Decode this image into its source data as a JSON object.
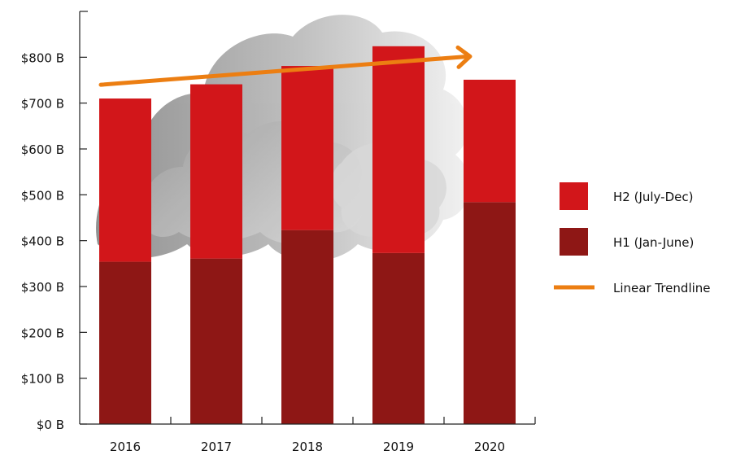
{
  "chart_data": {
    "type": "bar",
    "stacked": true,
    "categories": [
      "2016",
      "2017",
      "2018",
      "2019",
      "2020"
    ],
    "series": [
      {
        "name": "H1 (Jan-June)",
        "color": "#8e1715",
        "values": [
          354,
          361,
          423,
          373,
          484
        ]
      },
      {
        "name": "H2 (July-Dec)",
        "color": "#d2161a",
        "values": [
          356,
          380,
          358,
          451,
          267
        ]
      }
    ],
    "trendline": {
      "name": "Linear Trendline",
      "color": "#ec7e12",
      "start": 740,
      "end": 800
    },
    "y_ticks": [
      "$0 B",
      "$100 B",
      "$200 B",
      "$300 B",
      "$400 B",
      "$500 B",
      "$600 B",
      "$700 B",
      "$800 B"
    ],
    "ylim": [
      0,
      900
    ],
    "legend_position": "right",
    "grid": false,
    "title": "",
    "xlabel": "",
    "ylabel": ""
  }
}
